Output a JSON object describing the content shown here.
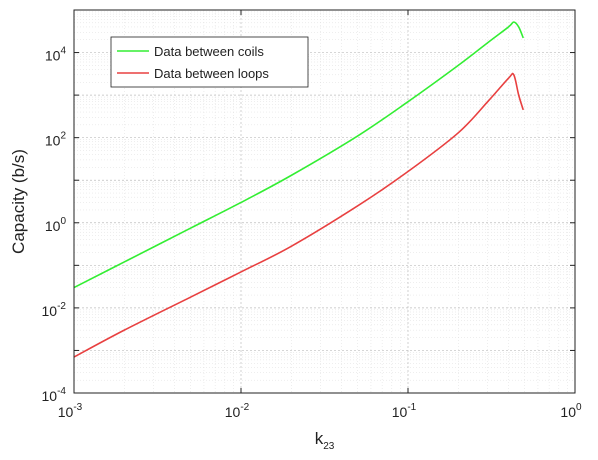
{
  "chart_data": {
    "type": "line",
    "xlabel": "k",
    "xlabel_sub": "23",
    "ylabel": "Capacity (b/s)",
    "xscale": "log",
    "yscale": "log",
    "xlim": [
      0.001,
      1
    ],
    "ylim": [
      0.0001,
      100000
    ],
    "grid": "on",
    "legend_position": "top-left",
    "x_ticks": [
      {
        "base": "10",
        "exp": "-3",
        "value": 0.001
      },
      {
        "base": "10",
        "exp": "-2",
        "value": 0.01
      },
      {
        "base": "10",
        "exp": "-1",
        "value": 0.1
      },
      {
        "base": "10",
        "exp": "0",
        "value": 1
      }
    ],
    "y_ticks": [
      {
        "base": "10",
        "exp": "-4",
        "value": 0.0001
      },
      {
        "base": "10",
        "exp": "-2",
        "value": 0.01
      },
      {
        "base": "10",
        "exp": "0",
        "value": 1
      },
      {
        "base": "10",
        "exp": "2",
        "value": 100
      },
      {
        "base": "10",
        "exp": "4",
        "value": 10000
      }
    ],
    "series": [
      {
        "name": "Data between coils",
        "color": "#33ee33",
        "x": [
          0.001,
          0.002,
          0.005,
          0.01,
          0.02,
          0.05,
          0.1,
          0.2,
          0.3,
          0.4,
          0.43,
          0.46,
          0.49
        ],
        "y": [
          0.03,
          0.12,
          0.75,
          3.0,
          13,
          110,
          700,
          5000,
          17000,
          40000,
          52000,
          40000,
          22000
        ]
      },
      {
        "name": "Data between loops",
        "color": "#e84040",
        "x": [
          0.001,
          0.002,
          0.005,
          0.01,
          0.02,
          0.05,
          0.1,
          0.2,
          0.3,
          0.4,
          0.43,
          0.46,
          0.49
        ],
        "y": [
          0.0007,
          0.003,
          0.018,
          0.07,
          0.28,
          2.5,
          16,
          130,
          700,
          2500,
          3000,
          1000,
          450
        ]
      }
    ]
  }
}
